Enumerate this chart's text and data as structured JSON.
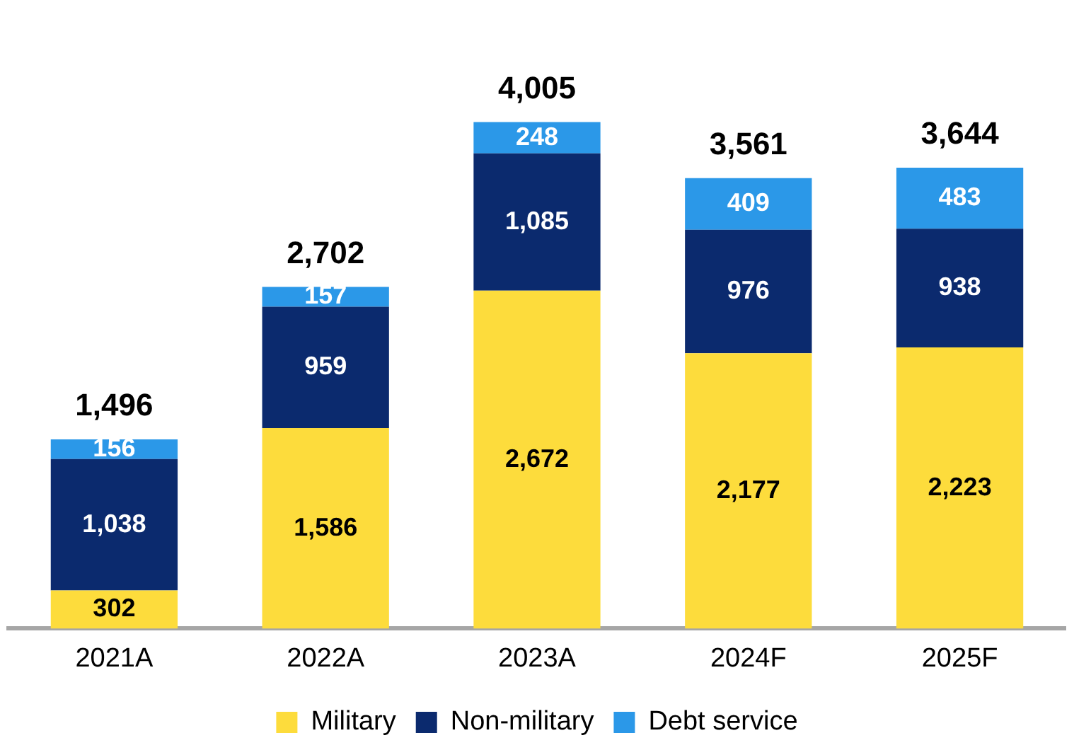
{
  "chart_data": {
    "type": "bar",
    "stacked": true,
    "legend": "bottom",
    "grid": false,
    "categories": [
      "2021A",
      "2022A",
      "2023A",
      "2024F",
      "2025F"
    ],
    "series": [
      {
        "name": "Military",
        "color": "#fddc3c",
        "values": [
          302,
          1586,
          2672,
          2177,
          2223
        ],
        "value_labels": [
          "302",
          "1,586",
          "2,672",
          "2,177",
          "2,223"
        ]
      },
      {
        "name": "Non-military",
        "color": "#0b2a6e",
        "values": [
          1038,
          959,
          1085,
          976,
          938
        ],
        "value_labels": [
          "1,038",
          "959",
          "1,085",
          "976",
          "938"
        ]
      },
      {
        "name": "Debt service",
        "color": "#2b98e8",
        "values": [
          156,
          157,
          248,
          409,
          483
        ],
        "value_labels": [
          "156",
          "157",
          "248",
          "409",
          "483"
        ]
      }
    ],
    "totals": [
      "1,496",
      "2,702",
      "4,005",
      "3,561",
      "3,644"
    ]
  }
}
